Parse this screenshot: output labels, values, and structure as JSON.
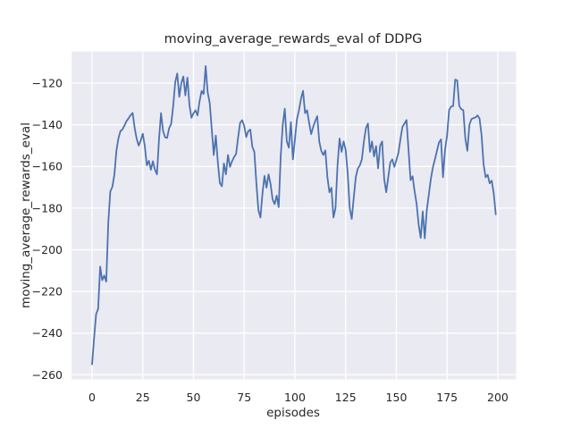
{
  "figure": {
    "background": "#ffffff"
  },
  "chart_data": {
    "type": "line",
    "title": "moving_average_rewards_eval of DDPG",
    "xlabel": "episodes",
    "ylabel": "moving_average_rewards_eval",
    "grid": true,
    "legend_position": "none",
    "x_ticks": [
      0,
      25,
      50,
      75,
      100,
      125,
      150,
      175,
      200
    ],
    "y_ticks": [
      -120,
      -140,
      -160,
      -180,
      -200,
      -220,
      -240,
      -260
    ],
    "xlim": [
      -10,
      209
    ],
    "ylim": [
      -262.2,
      -104.8
    ],
    "colors": {
      "line": "#4c72b0",
      "axes_background": "#eaeaf2",
      "grid": "#ffffff",
      "text": "#262626"
    },
    "series": [
      {
        "name": "moving_average_rewards_eval",
        "x_start": 0,
        "x_step": 1,
        "values": [
          -255.0,
          -242.5,
          -230.9,
          -228.4,
          -208.1,
          -214.6,
          -212.4,
          -215.3,
          -187.0,
          -172.0,
          -169.8,
          -164.0,
          -152.5,
          -146.5,
          -143.0,
          -142.2,
          -140.3,
          -138.2,
          -136.9,
          -135.4,
          -134.3,
          -141.5,
          -146.8,
          -150.0,
          -147.5,
          -144.3,
          -150.2,
          -159.5,
          -157.3,
          -161.6,
          -157.5,
          -161.5,
          -163.8,
          -147.0,
          -134.4,
          -143.0,
          -146.0,
          -146.3,
          -141.6,
          -139.6,
          -131.0,
          -119.5,
          -115.4,
          -126.6,
          -120.0,
          -116.8,
          -125.9,
          -117.3,
          -130.5,
          -136.6,
          -134.5,
          -133.0,
          -135.5,
          -128.7,
          -123.8,
          -125.2,
          -111.8,
          -124.5,
          -129.5,
          -142.0,
          -154.5,
          -145.2,
          -158.0,
          -168.0,
          -169.5,
          -158.5,
          -163.8,
          -154.5,
          -160.2,
          -157.5,
          -155.5,
          -154.0,
          -146.0,
          -139.0,
          -137.8,
          -140.5,
          -145.9,
          -143.0,
          -142.3,
          -150.5,
          -153.0,
          -168.0,
          -181.0,
          -184.5,
          -173.0,
          -164.5,
          -170.2,
          -163.8,
          -168.5,
          -175.9,
          -178.1,
          -174.0,
          -179.5,
          -155.0,
          -140.0,
          -132.3,
          -148.0,
          -151.0,
          -138.7,
          -156.6,
          -147.0,
          -137.3,
          -133.0,
          -127.5,
          -123.7,
          -134.4,
          -133.0,
          -139.0,
          -144.5,
          -141.0,
          -138.2,
          -135.9,
          -148.0,
          -152.5,
          -154.5,
          -152.3,
          -165.0,
          -172.4,
          -170.2,
          -184.5,
          -180.0,
          -159.5,
          -146.6,
          -153.0,
          -148.0,
          -152.0,
          -163.0,
          -180.0,
          -185.2,
          -175.0,
          -165.2,
          -161.0,
          -159.5,
          -156.6,
          -148.0,
          -141.6,
          -139.4,
          -153.0,
          -148.0,
          -155.2,
          -150.2,
          -160.9,
          -150.0,
          -148.0,
          -166.0,
          -172.4,
          -165.2,
          -158.1,
          -156.6,
          -160.2,
          -157.0,
          -153.5,
          -147.0,
          -141.0,
          -139.4,
          -137.7,
          -152.0,
          -166.6,
          -164.7,
          -172.0,
          -178.1,
          -188.0,
          -194.3,
          -181.6,
          -194.5,
          -181.0,
          -173.5,
          -166.0,
          -160.5,
          -156.6,
          -152.5,
          -148.5,
          -147.0,
          -165.2,
          -152.0,
          -145.2,
          -133.0,
          -131.2,
          -131.0,
          -118.3,
          -118.7,
          -130.9,
          -132.5,
          -133.0,
          -146.6,
          -152.5,
          -140.0,
          -137.3,
          -136.8,
          -136.5,
          -135.5,
          -137.0,
          -145.0,
          -159.0,
          -165.2,
          -164.0,
          -168.1,
          -166.8,
          -173.0,
          -183.0
        ]
      }
    ]
  }
}
